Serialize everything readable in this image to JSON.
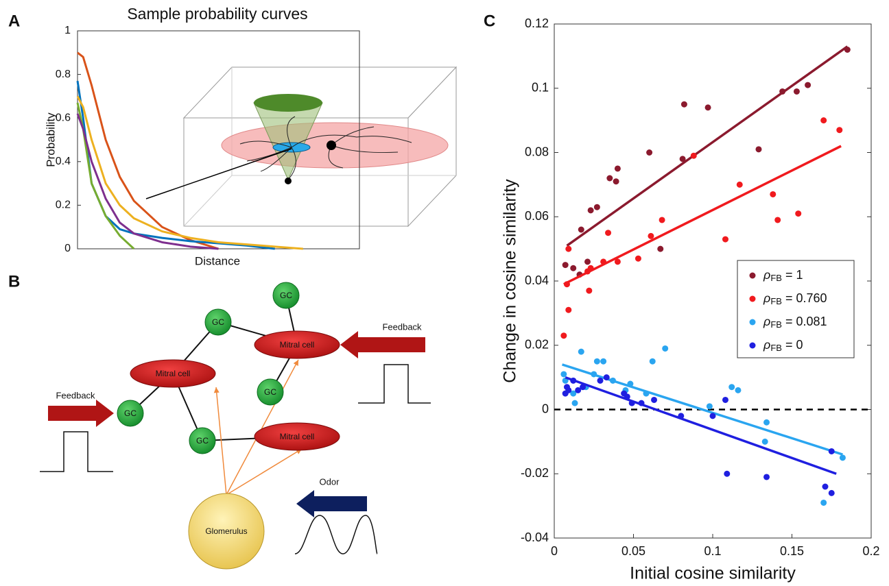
{
  "panel_labels": [
    "A",
    "B",
    "C"
  ],
  "chart_data": [
    {
      "type": "line",
      "title": "Sample probability curves",
      "x_label": "Distance",
      "y_label": "Probability",
      "x": [
        0,
        0.02,
        0.05,
        0.1,
        0.15,
        0.2,
        0.3,
        0.4,
        0.5,
        0.6,
        0.7,
        0.8
      ],
      "xlim": [
        0,
        1
      ],
      "ylim": [
        0,
        1
      ],
      "yticks": [
        0,
        0.2,
        0.4,
        0.6,
        0.8,
        1
      ],
      "series": [
        {
          "color": "#d95319",
          "values": [
            0.9,
            0.88,
            0.75,
            0.5,
            0.33,
            0.22,
            0.1,
            0.04,
            0,
            null,
            null,
            null
          ]
        },
        {
          "color": "#0072bd",
          "values": [
            0.77,
            0.6,
            0.3,
            0.15,
            0.09,
            0.07,
            0.05,
            0.035,
            0.025,
            0.015,
            0,
            null
          ]
        },
        {
          "color": "#edb120",
          "values": [
            0.7,
            0.65,
            0.5,
            0.3,
            0.2,
            0.14,
            0.08,
            0.05,
            0.03,
            0.02,
            0.01,
            0
          ]
        },
        {
          "color": "#77ac30",
          "values": [
            0.67,
            0.55,
            0.3,
            0.15,
            0.06,
            0,
            null,
            null,
            null,
            null,
            null,
            null
          ]
        },
        {
          "color": "#7e2f8e",
          "values": [
            0.62,
            0.55,
            0.4,
            0.23,
            0.12,
            0.07,
            0.03,
            0.01,
            0,
            null,
            null,
            null
          ]
        }
      ]
    },
    {
      "type": "scatter",
      "x_label": "Initial cosine similarity",
      "y_label": "Change in cosine similarity",
      "xlim": [
        0,
        0.2
      ],
      "ylim": [
        -0.04,
        0.12
      ],
      "xticks": [
        0,
        0.05,
        0.1,
        0.15,
        0.2
      ],
      "yticks": [
        -0.04,
        -0.02,
        0,
        0.02,
        0.04,
        0.06,
        0.08,
        0.1,
        0.12
      ],
      "hline": 0,
      "legend_symbol": "ρ",
      "legend_subscript": "FB",
      "legend": "right",
      "series": [
        {
          "name": "= 1",
          "color": "#8b1a2e",
          "x": [
            0.007,
            0.012,
            0.016,
            0.017,
            0.021,
            0.023,
            0.027,
            0.035,
            0.039,
            0.04,
            0.06,
            0.067,
            0.081,
            0.082,
            0.097,
            0.129,
            0.144,
            0.153,
            0.16,
            0.185
          ],
          "values": [
            0.045,
            0.044,
            0.042,
            0.056,
            0.046,
            0.062,
            0.063,
            0.072,
            0.071,
            0.075,
            0.08,
            0.05,
            0.078,
            0.095,
            0.094,
            0.081,
            0.099,
            0.099,
            0.101,
            0.112
          ],
          "fit_x": [
            0.008,
            0.185
          ],
          "fit_y": [
            0.051,
            0.113
          ]
        },
        {
          "name": "= 0.760",
          "color": "#f01a1e",
          "x": [
            0.006,
            0.009,
            0.008,
            0.009,
            0.022,
            0.021,
            0.023,
            0.031,
            0.034,
            0.04,
            0.053,
            0.061,
            0.068,
            0.088,
            0.108,
            0.117,
            0.138,
            0.141,
            0.154,
            0.17,
            0.18
          ],
          "values": [
            0.023,
            0.031,
            0.039,
            0.05,
            0.037,
            0.043,
            0.044,
            0.046,
            0.055,
            0.046,
            0.047,
            0.054,
            0.059,
            0.079,
            0.053,
            0.07,
            0.067,
            0.059,
            0.061,
            0.09,
            0.087
          ],
          "fit_x": [
            0.006,
            0.181
          ],
          "fit_y": [
            0.039,
            0.082
          ]
        },
        {
          "name": "= 0.081",
          "color": "#2aa5f0",
          "x": [
            0.006,
            0.007,
            0.012,
            0.013,
            0.017,
            0.02,
            0.025,
            0.027,
            0.031,
            0.037,
            0.045,
            0.048,
            0.058,
            0.062,
            0.07,
            0.098,
            0.112,
            0.116,
            0.134,
            0.133,
            0.17,
            0.182
          ],
          "values": [
            0.011,
            0.009,
            0.005,
            0.002,
            0.018,
            0.007,
            0.011,
            0.015,
            0.015,
            0.009,
            0.006,
            0.008,
            0.005,
            0.015,
            0.019,
            0.001,
            0.007,
            0.006,
            -0.004,
            -0.01,
            -0.029,
            -0.015
          ],
          "fit_x": [
            0.005,
            0.182
          ],
          "fit_y": [
            0.014,
            -0.014
          ]
        },
        {
          "name": "= 0",
          "color": "#1f1fe0",
          "x": [
            0.007,
            0.008,
            0.009,
            0.012,
            0.015,
            0.018,
            0.029,
            0.033,
            0.044,
            0.046,
            0.049,
            0.055,
            0.063,
            0.08,
            0.1,
            0.108,
            0.109,
            0.134,
            0.171,
            0.175,
            0.175
          ],
          "values": [
            0.005,
            0.007,
            0.006,
            0.009,
            0.006,
            0.007,
            0.009,
            0.01,
            0.005,
            0.004,
            0.002,
            0.002,
            0.003,
            -0.002,
            -0.002,
            0.003,
            -0.02,
            -0.021,
            -0.024,
            -0.026,
            -0.013
          ],
          "fit_x": [
            0.007,
            0.178
          ],
          "fit_y": [
            0.01,
            -0.02
          ]
        }
      ]
    }
  ],
  "diagram": {
    "nodes": [
      "GC",
      "GC",
      "GC",
      "GC",
      "GC",
      "Mitral cell",
      "Mitral cell",
      "Mitral cell",
      "Glomerulus"
    ],
    "inputs": [
      "Feedback",
      "Feedback",
      "Odor"
    ]
  }
}
